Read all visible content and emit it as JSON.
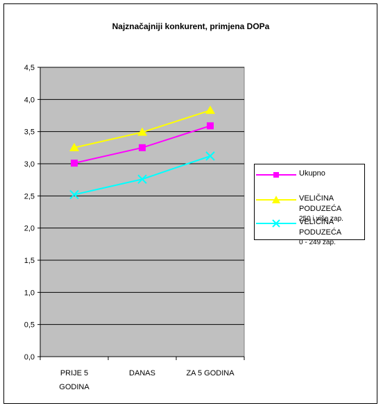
{
  "chart_data": {
    "type": "line",
    "title": "Najznačajniji konkurent, primjena DOPa",
    "xlabel": "",
    "ylabel": "",
    "categories": [
      "PRIJE 5 GODINA",
      "DANAS",
      "ZA 5 GODINA"
    ],
    "category_lines": [
      [
        "PRIJE 5",
        "GODINA"
      ],
      [
        "DANAS"
      ],
      [
        "ZA 5 GODINA"
      ]
    ],
    "ylim": [
      0,
      4.5
    ],
    "y_ticks": [
      "0,0",
      "0,5",
      "1,0",
      "1,5",
      "2,0",
      "2,5",
      "3,0",
      "3,5",
      "4,0",
      "4,5"
    ],
    "y_tick_values": [
      0,
      0.5,
      1.0,
      1.5,
      2.0,
      2.5,
      3.0,
      3.5,
      4.0,
      4.5
    ],
    "grid": true,
    "plot_background": "#c0c0c0",
    "legend_position": "right",
    "series": [
      {
        "name": "Ukupno",
        "name_line2": "",
        "values": [
          3.01,
          3.25,
          3.59
        ],
        "color": "#ff00ff",
        "marker": "square"
      },
      {
        "name": "VELIČINA PODUZEĆA",
        "name_line2": "250 i više zap.",
        "values": [
          3.25,
          3.49,
          3.83
        ],
        "color": "#ffff00",
        "marker": "triangle"
      },
      {
        "name": "VELIČINA PODUZEĆA",
        "name_line2": "0 - 249 zap.",
        "values": [
          2.52,
          2.76,
          3.12
        ],
        "color": "#00ffff",
        "marker": "x"
      }
    ]
  }
}
